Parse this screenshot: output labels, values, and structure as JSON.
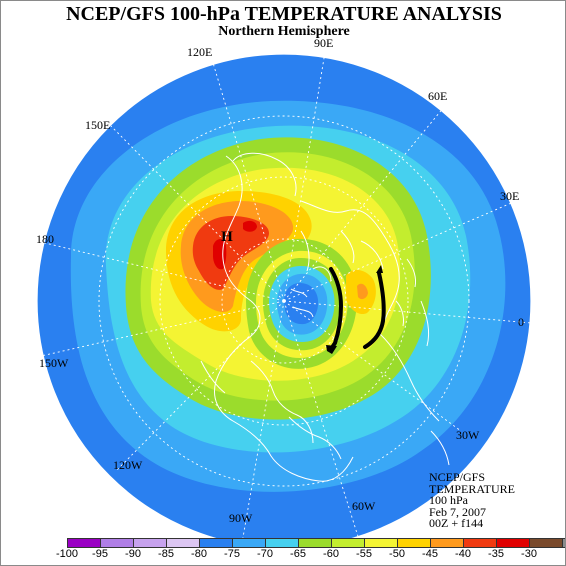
{
  "title": "NCEP/GFS 100-hPa TEMPERATURE ANALYSIS",
  "subtitle": "Northern Hemisphere",
  "longitude_labels": [
    "90E",
    "60E",
    "30E",
    "0",
    "30W",
    "60W",
    "90W",
    "120W",
    "150W",
    "180",
    "150E",
    "120E"
  ],
  "high_marker": "H",
  "info_lines": [
    "NCEP/GFS",
    "TEMPERATURE",
    "100 hPa",
    "Feb 7, 2007",
    "00Z + f144"
  ],
  "colorbar": {
    "labels": [
      "-100",
      "-95",
      "-90",
      "-85",
      "-80",
      "-75",
      "-70",
      "-65",
      "-60",
      "-55",
      "-50",
      "-45",
      "-40",
      "-35",
      "-30"
    ],
    "colors": [
      "#9a00c4",
      "#b07ee6",
      "#c7a2ee",
      "#dcc6f2",
      "#2a80f0",
      "#3aa8f6",
      "#46d0ef",
      "#9bdc2c",
      "#c3ed2e",
      "#f4f433",
      "#ffd200",
      "#ff9a1d",
      "#f03a10",
      "#e00000",
      "#7a4a2c",
      "#8c8c8c"
    ]
  }
}
